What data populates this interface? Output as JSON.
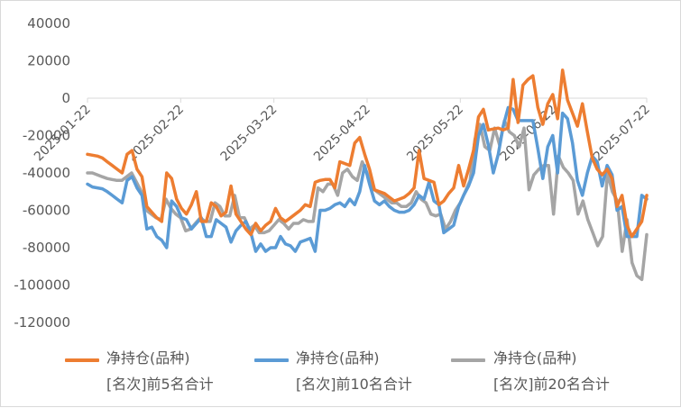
{
  "chart_data": {
    "type": "line",
    "ylim": [
      -120000,
      40000
    ],
    "yticks": [
      40000,
      20000,
      0,
      -20000,
      -40000,
      -60000,
      -80000,
      -100000,
      -120000
    ],
    "ytick_labels": [
      "40000",
      "20000",
      "0",
      "-20000",
      "-40000",
      "-60000",
      "-80000",
      "-100000",
      "-120000"
    ],
    "x_tick_labels": [
      "2025-01-22",
      "2025-02-22",
      "2025-03-22",
      "2025-04-22",
      "2025-05-22",
      "2025-06-22",
      "2025-07-22"
    ],
    "legend_position": "bottom",
    "grid": false,
    "series": [
      {
        "name": "净持仓(品种)\n[名次]前5名合计",
        "color": "#ED7D31",
        "values": [
          -30000,
          -30500,
          -31000,
          -32000,
          -34000,
          -36000,
          -38000,
          -40000,
          -30000,
          -28000,
          -38000,
          -42000,
          -58000,
          -61000,
          -64000,
          -66000,
          -40000,
          -43000,
          -54000,
          -59000,
          -62000,
          -57000,
          -50000,
          -66000,
          -66000,
          -56000,
          -58000,
          -63000,
          -61000,
          -47000,
          -62000,
          -66000,
          -70000,
          -73000,
          -67000,
          -71000,
          -68000,
          -66000,
          -59000,
          -64000,
          -66000,
          -64000,
          -62000,
          -60000,
          -57000,
          -58000,
          -45000,
          -44000,
          -43500,
          -43500,
          -48000,
          -34000,
          -35000,
          -36000,
          -24000,
          -21000,
          -30000,
          -38000,
          -49000,
          -50000,
          -51000,
          -53000,
          -55000,
          -54000,
          -53000,
          -51000,
          -48000,
          -28000,
          -43000,
          -44000,
          -45000,
          -57000,
          -55000,
          -51000,
          -48000,
          -36000,
          -47000,
          -38000,
          -28000,
          -10000,
          -6000,
          -17000,
          -16500,
          -16000,
          -17000,
          -16000,
          10000,
          -13000,
          7000,
          10000,
          12000,
          -5000,
          -14000,
          -3000,
          2000,
          -11000,
          15000,
          -1000,
          -8000,
          -15000,
          -3000,
          -18000,
          -32000,
          -38000,
          -41000,
          -38000,
          -43000,
          -58000,
          -52000,
          -68000,
          -74000,
          -70000,
          -66000,
          -52000
        ]
      },
      {
        "name": "净持仓(品种)\n[名次]前10名合计",
        "color": "#5B9BD5",
        "values": [
          -46000,
          -47500,
          -48000,
          -48500,
          -50000,
          -52000,
          -54000,
          -56000,
          -44000,
          -42000,
          -48000,
          -52000,
          -70000,
          -69000,
          -74000,
          -76000,
          -80000,
          -55000,
          -58000,
          -64000,
          -65000,
          -70000,
          -67000,
          -64000,
          -74000,
          -74000,
          -65000,
          -67000,
          -69000,
          -77000,
          -71000,
          -68000,
          -66000,
          -72000,
          -82000,
          -78000,
          -82000,
          -80000,
          -80000,
          -74000,
          -78000,
          -79000,
          -82000,
          -77000,
          -76000,
          -75000,
          -82000,
          -60000,
          -60000,
          -59000,
          -57000,
          -56000,
          -58000,
          -54000,
          -57000,
          -50000,
          -36000,
          -46000,
          -55000,
          -57000,
          -55000,
          -58000,
          -60000,
          -61000,
          -61000,
          -60000,
          -57000,
          -52000,
          -54000,
          -45000,
          -55000,
          -57000,
          -72000,
          -70000,
          -68000,
          -58000,
          -52000,
          -47000,
          -40000,
          -20000,
          -14000,
          -25000,
          -40000,
          -30000,
          -15000,
          -5000,
          -6000,
          -12000,
          -12000,
          -12000,
          -12000,
          -27000,
          -43000,
          -26000,
          -20000,
          -40000,
          -8000,
          -11000,
          -24000,
          -44000,
          -52000,
          -40000,
          -31000,
          -34000,
          -47000,
          -36000,
          -41000,
          -60000,
          -58000,
          -74000,
          -74000,
          -74000,
          -52000,
          -54000
        ]
      },
      {
        "name": "净持仓(品种)\n[名次]前20名合计",
        "color": "#A5A5A5",
        "values": [
          -40000,
          -40000,
          -41000,
          -42000,
          -43000,
          -43500,
          -44000,
          -44000,
          -42000,
          -40000,
          -45000,
          -50000,
          -60000,
          -62000,
          -64000,
          -65000,
          -54000,
          -59000,
          -62000,
          -64000,
          -71000,
          -70000,
          -67000,
          -64000,
          -66000,
          -66000,
          -56000,
          -58000,
          -63000,
          -63000,
          -52000,
          -64000,
          -64000,
          -70000,
          -68000,
          -72000,
          -72000,
          -71000,
          -68000,
          -65000,
          -67000,
          -70000,
          -67000,
          -67000,
          -65000,
          -66000,
          -66000,
          -48000,
          -50000,
          -46000,
          -46000,
          -52000,
          -40000,
          -38000,
          -42000,
          -44000,
          -34000,
          -40000,
          -48000,
          -50000,
          -52000,
          -54000,
          -56000,
          -56000,
          -58000,
          -58000,
          -56000,
          -50000,
          -54000,
          -56000,
          -62000,
          -63000,
          -62000,
          -70000,
          -66000,
          -60000,
          -56000,
          -50000,
          -44000,
          -22000,
          -14000,
          -26000,
          -28000,
          -16000,
          -25000,
          -12000,
          -18000,
          -20000,
          -26000,
          -16000,
          -49000,
          -41000,
          -38000,
          -36000,
          -36000,
          -62000,
          -31000,
          -37000,
          -40000,
          -44000,
          -62000,
          -55000,
          -65000,
          -72000,
          -79000,
          -74000,
          -40000,
          -50000,
          -55000,
          -82000,
          -65000,
          -88000,
          -95000,
          -97000,
          -73000
        ]
      }
    ]
  }
}
